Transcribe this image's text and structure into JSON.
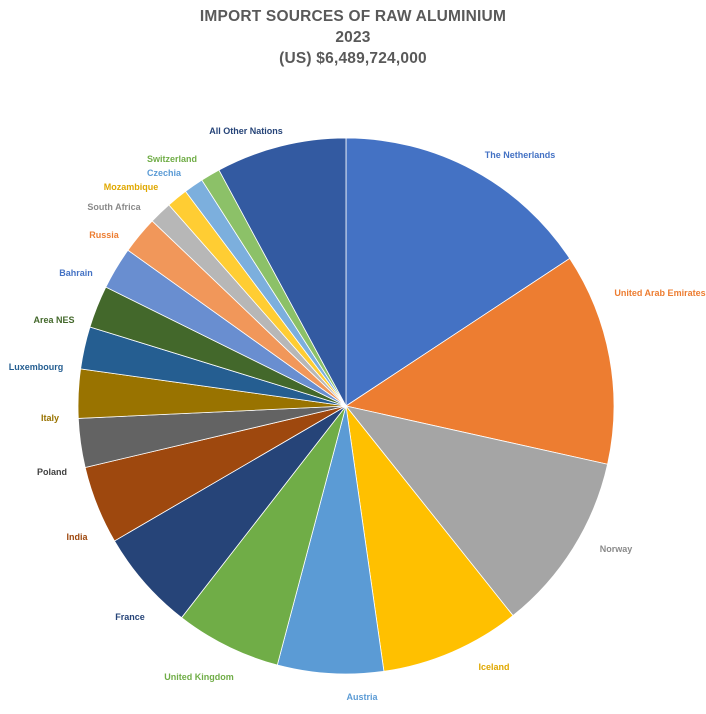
{
  "chart_data": {
    "type": "pie",
    "title": "IMPORT SOURCES OF RAW ALUMINIUM",
    "subtitle": "2023",
    "total_label": "(US) $6,489,724,000",
    "slices": [
      {
        "label": "The Netherlands",
        "value": 16.0,
        "color": "#4472C4"
      },
      {
        "label": "United Arab Emirates",
        "value": 13.0,
        "color": "#ED7D31"
      },
      {
        "label": "Norway",
        "value": 11.0,
        "color": "#A5A5A5"
      },
      {
        "label": "Iceland",
        "value": 8.6,
        "color": "#FFC000"
      },
      {
        "label": "Austria",
        "value": 6.5,
        "color": "#5B9BD5"
      },
      {
        "label": "United Kingdom",
        "value": 6.5,
        "color": "#70AD47"
      },
      {
        "label": "France",
        "value": 6.2,
        "color": "#264478"
      },
      {
        "label": "India",
        "value": 4.8,
        "color": "#9E480E"
      },
      {
        "label": "Poland",
        "value": 3.0,
        "color": "#636363"
      },
      {
        "label": "Italy",
        "value": 3.0,
        "color": "#997300"
      },
      {
        "label": "Luxembourg",
        "value": 2.6,
        "color": "#255E91"
      },
      {
        "label": "Area NES",
        "value": 2.6,
        "color": "#43682B"
      },
      {
        "label": "Bahrain",
        "value": 2.6,
        "color": "#698ED0"
      },
      {
        "label": "Russia",
        "value": 2.3,
        "color": "#F1975A"
      },
      {
        "label": "South Africa",
        "value": 1.4,
        "color": "#B7B7B7"
      },
      {
        "label": "Mozambique",
        "value": 1.3,
        "color": "#FFCD33"
      },
      {
        "label": "Czechia",
        "value": 1.2,
        "color": "#7CAFDD"
      },
      {
        "label": "Switzerland",
        "value": 1.2,
        "color": "#8CC168"
      },
      {
        "label": "All Other Nations",
        "value": 8.0,
        "color": "#335AA1"
      }
    ],
    "label_colors": {
      "The Netherlands": "#4472C4",
      "United Arab Emirates": "#ED7D31",
      "Norway": "#8A8A8A",
      "Iceland": "#E0A800",
      "Austria": "#5B9BD5",
      "United Kingdom": "#70AD47",
      "France": "#264478",
      "India": "#9E480E",
      "Poland": "#404040",
      "Italy": "#997300",
      "Luxembourg": "#255E91",
      "Area NES": "#43682B",
      "Bahrain": "#4472C4",
      "Russia": "#ED7D31",
      "South Africa": "#8A8A8A",
      "Mozambique": "#E0A800",
      "Czechia": "#5B9BD5",
      "Switzerland": "#70AD47",
      "All Other Nations": "#264478"
    },
    "legend": "none",
    "data_labels": "category names outside slices"
  }
}
